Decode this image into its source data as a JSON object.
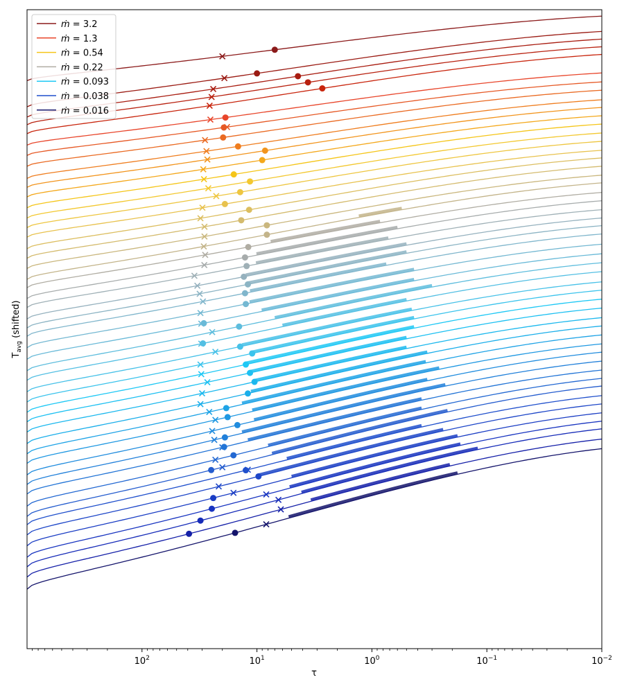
{
  "chart_data": {
    "type": "line",
    "title": "",
    "xlabel": "τ",
    "ylabel_main": "T",
    "ylabel_sub": "avg",
    "ylabel_suffix": " (shifted)",
    "xscale": "log",
    "x_reversed": true,
    "xlim": [
      1000,
      0.01
    ],
    "ylim": [
      0,
      100
    ],
    "x_ticks": [
      {
        "value": 100,
        "base": "10",
        "exp": "2"
      },
      {
        "value": 10,
        "base": "10",
        "exp": "1"
      },
      {
        "value": 1,
        "base": "10",
        "exp": "0"
      },
      {
        "value": 0.1,
        "base": "10",
        "exp": "−1"
      },
      {
        "value": 0.01,
        "base": "10",
        "exp": "−2"
      }
    ],
    "y_ticks": [],
    "legend_position": "upper-left",
    "legend": [
      {
        "label": "= 3.2",
        "color": "#8b1a1a"
      },
      {
        "label": "= 1.3",
        "color": "#e8452a"
      },
      {
        "label": "= 0.54",
        "color": "#f5c518"
      },
      {
        "label": "= 0.22",
        "color": "#b0ada3"
      },
      {
        "label": "= 0.093",
        "color": "#1ec8f5"
      },
      {
        "label": "= 0.038",
        "color": "#1f4fcc"
      },
      {
        "label": "= 0.016",
        "color": "#14146b"
      }
    ],
    "legend_symbol": "ṁ",
    "series": [
      {
        "name": "ṁ = 3.2",
        "color": "#8b1a1a",
        "y_left": 88.9,
        "y_right": 99.0,
        "x_mark": 20.0,
        "x_dot": 7.0,
        "ribbon": null
      },
      {
        "name": "",
        "color": "#9a1a12",
        "y_left": 84.8,
        "y_right": 96.6,
        "x_mark": 19.2,
        "x_dot": 10.0,
        "ribbon": null
      },
      {
        "name": "",
        "color": "#a81c10",
        "y_left": 83.2,
        "y_right": 95.4,
        "x_mark": 24.0,
        "x_dot": 4.4,
        "ribbon": null
      },
      {
        "name": "",
        "color": "#b8200e",
        "y_left": 82.0,
        "y_right": 94.2,
        "x_mark": 24.8,
        "x_dot": 3.6,
        "ribbon": null
      },
      {
        "name": "",
        "color": "#c8240c",
        "y_left": 80.6,
        "y_right": 93.0,
        "x_mark": 25.8,
        "x_dot": 2.7,
        "ribbon": null
      },
      {
        "name": "ṁ = 1.3",
        "color": "#e8452a",
        "y_left": 78.8,
        "y_right": 90.1,
        "x_mark": 25.4,
        "x_dot": 18.8,
        "ribbon": null
      },
      {
        "name": "",
        "color": "#e65824",
        "y_left": 77.2,
        "y_right": 88.7,
        "x_mark": 18.2,
        "x_dot": 19.4,
        "ribbon": null
      },
      {
        "name": "",
        "color": "#ea6a22",
        "y_left": 75.5,
        "y_right": 87.4,
        "x_mark": 28.3,
        "x_dot": 19.7,
        "ribbon": null
      },
      {
        "name": "",
        "color": "#ef7d1e",
        "y_left": 73.6,
        "y_right": 85.9,
        "x_mark": 27.5,
        "x_dot": 14.6,
        "ribbon": null
      },
      {
        "name": "",
        "color": "#f2941c",
        "y_left": 72.2,
        "y_right": 84.7,
        "x_mark": 27.0,
        "x_dot": 8.5,
        "ribbon": null
      },
      {
        "name": "",
        "color": "#f4a81b",
        "y_left": 70.7,
        "y_right": 83.4,
        "x_mark": 29.3,
        "x_dot": 9.0,
        "ribbon": null
      },
      {
        "name": "ṁ = 0.54",
        "color": "#f5c518",
        "y_left": 69.0,
        "y_right": 82.1,
        "x_mark": 28.9,
        "x_dot": 15.9,
        "ribbon": null
      },
      {
        "name": "",
        "color": "#f3c830",
        "y_left": 67.4,
        "y_right": 80.7,
        "x_mark": 26.5,
        "x_dot": 11.5,
        "ribbon": null
      },
      {
        "name": "",
        "color": "#eec640",
        "y_left": 65.9,
        "y_right": 79.4,
        "x_mark": 22.6,
        "x_dot": 14.0,
        "ribbon": null
      },
      {
        "name": "",
        "color": "#e8c24e",
        "y_left": 64.4,
        "y_right": 78.0,
        "x_mark": 29.8,
        "x_dot": 19.0,
        "ribbon": null
      },
      {
        "name": "",
        "color": "#dcbe60",
        "y_left": 62.6,
        "y_right": 76.8,
        "x_mark": 31.0,
        "x_dot": 11.7,
        "ribbon": null
      },
      {
        "name": "",
        "color": "#d4bb6e",
        "y_left": 61.1,
        "y_right": 75.5,
        "x_mark": 28.6,
        "x_dot": 13.7,
        "ribbon": null
      },
      {
        "name": "",
        "color": "#cab77e",
        "y_left": 59.5,
        "y_right": 74.1,
        "x_mark": 28.6,
        "x_dot": 8.2,
        "ribbon": null
      },
      {
        "name": "",
        "color": "#c3b48a",
        "y_left": 57.8,
        "y_right": 72.9,
        "x_mark": 29.0,
        "x_dot": 8.2,
        "ribbon": [
          1.3,
          0.55
        ]
      },
      {
        "name": "ṁ = 0.22",
        "color": "#b0ada3",
        "y_left": 56.5,
        "y_right": 71.4,
        "x_mark": 28.2,
        "x_dot": 11.9,
        "ribbon": [
          7.6,
          0.85
        ]
      },
      {
        "name": "",
        "color": "#a7acac",
        "y_left": 54.8,
        "y_right": 70.1,
        "x_mark": 28.7,
        "x_dot": 12.7,
        "ribbon": [
          10.1,
          0.6
        ]
      },
      {
        "name": "",
        "color": "#9fb0b6",
        "y_left": 53.4,
        "y_right": 68.7,
        "x_mark": 35.0,
        "x_dot": 12.3,
        "ribbon": [
          10.2,
          0.72
        ]
      },
      {
        "name": "",
        "color": "#95b1be",
        "y_left": 51.6,
        "y_right": 67.4,
        "x_mark": 33.0,
        "x_dot": 13.0,
        "ribbon": [
          12.5,
          0.5
        ]
      },
      {
        "name": "",
        "color": "#8cb4c4",
        "y_left": 50.2,
        "y_right": 66.2,
        "x_mark": 31.5,
        "x_dot": 12.0,
        "ribbon": [
          12.2,
          0.5
        ]
      },
      {
        "name": "",
        "color": "#80b6cc",
        "y_left": 48.9,
        "y_right": 64.9,
        "x_mark": 29.5,
        "x_dot": 12.7,
        "ribbon": [
          11.5,
          0.75
        ]
      },
      {
        "name": "",
        "color": "#74b8d2",
        "y_left": 47.1,
        "y_right": 63.3,
        "x_mark": 31.0,
        "x_dot": 12.5,
        "ribbon": [
          11.6,
          0.43
        ]
      },
      {
        "name": "",
        "color": "#6abad8",
        "y_left": 45.3,
        "y_right": 61.8,
        "x_mark": 30.5,
        "x_dot": 29.0,
        "ribbon": [
          9.1,
          0.43
        ]
      },
      {
        "name": "",
        "color": "#5ebddd",
        "y_left": 43.5,
        "y_right": 60.4,
        "x_mark": 24.5,
        "x_dot": 14.3,
        "ribbon": [
          7.0,
          0.3
        ]
      },
      {
        "name": "",
        "color": "#53bfe3",
        "y_left": 42.0,
        "y_right": 59.0,
        "x_mark": 30.5,
        "x_dot": 29.5,
        "ribbon": [
          6.0,
          0.5
        ]
      },
      {
        "name": "",
        "color": "#47c1e8",
        "y_left": 40.2,
        "y_right": 57.4,
        "x_mark": 23.0,
        "x_dot": 14.0,
        "ribbon": [
          13.5,
          0.45
        ]
      },
      {
        "name": "",
        "color": "#3ac3ec",
        "y_left": 38.6,
        "y_right": 56.1,
        "x_mark": 31.0,
        "x_dot": 11.0,
        "ribbon": [
          11.5,
          0.43
        ]
      },
      {
        "name": "ṁ = 0.093",
        "color": "#1ec8f5",
        "y_left": 37.0,
        "y_right": 54.7,
        "x_mark": 30.5,
        "x_dot": 12.5,
        "ribbon": [
          12.7,
          0.43
        ]
      },
      {
        "name": "",
        "color": "#1cc0f2",
        "y_left": 35.5,
        "y_right": 53.3,
        "x_mark": 27.0,
        "x_dot": 11.5,
        "ribbon": [
          11.5,
          0.5
        ]
      },
      {
        "name": "",
        "color": "#1bb8ee",
        "y_left": 33.9,
        "y_right": 51.8,
        "x_mark": 30.0,
        "x_dot": 10.5,
        "ribbon": [
          10.4,
          0.5
        ]
      },
      {
        "name": "",
        "color": "#1aaeea",
        "y_left": 32.1,
        "y_right": 50.5,
        "x_mark": 31.0,
        "x_dot": 12.0,
        "ribbon": [
          11.3,
          0.33
        ]
      },
      {
        "name": "",
        "color": "#1ea3e6",
        "y_left": 30.5,
        "y_right": 49.1,
        "x_mark": 26.0,
        "x_dot": 18.5,
        "ribbon": [
          13.5,
          0.34
        ]
      },
      {
        "name": "",
        "color": "#1f98e2",
        "y_left": 29.0,
        "y_right": 47.7,
        "x_mark": 23.0,
        "x_dot": 18.0,
        "ribbon": [
          11.0,
          0.26
        ]
      },
      {
        "name": "",
        "color": "#208cde",
        "y_left": 27.2,
        "y_right": 46.4,
        "x_mark": 24.5,
        "x_dot": 14.8,
        "ribbon": [
          10.6,
          0.33
        ]
      },
      {
        "name": "",
        "color": "#2180da",
        "y_left": 25.7,
        "y_right": 45.0,
        "x_mark": 23.5,
        "x_dot": 19.0,
        "ribbon": [
          13.5,
          0.23
        ]
      },
      {
        "name": "",
        "color": "#2274d6",
        "y_left": 24.2,
        "y_right": 43.6,
        "x_mark": 20.0,
        "x_dot": 19.3,
        "ribbon": [
          12.0,
          0.37
        ]
      },
      {
        "name": "",
        "color": "#2368d2",
        "y_left": 22.3,
        "y_right": 42.3,
        "x_mark": 23.0,
        "x_dot": 16.0,
        "ribbon": [
          8.0,
          0.37
        ]
      },
      {
        "name": "",
        "color": "#245cce",
        "y_left": 20.7,
        "y_right": 41.1,
        "x_mark": 20.0,
        "x_dot": 25.0,
        "ribbon": [
          7.4,
          0.22
        ]
      },
      {
        "name": "ṁ = 0.038",
        "color": "#1f4fcc",
        "y_left": 19.4,
        "y_right": 39.6,
        "x_mark": 12.0,
        "x_dot": 12.5,
        "ribbon": [
          5.5,
          0.37
        ]
      },
      {
        "name": "",
        "color": "#1d46c8",
        "y_left": 17.8,
        "y_right": 38.3,
        "x_mark": 21.5,
        "x_dot": 9.7,
        "ribbon": [
          9.7,
          0.24
        ]
      },
      {
        "name": "",
        "color": "#1a3dc4",
        "y_left": 16.1,
        "y_right": 36.9,
        "x_mark": 16.0,
        "x_dot": 24.0,
        "ribbon": [
          5.0,
          0.18
        ]
      },
      {
        "name": "",
        "color": "#1834c0",
        "y_left": 14.3,
        "y_right": 35.6,
        "x_mark": 8.3,
        "x_dot": 24.7,
        "ribbon": [
          5.2,
          0.17
        ]
      },
      {
        "name": "",
        "color": "#162bb8",
        "y_left": 12.8,
        "y_right": 34.4,
        "x_mark": 6.5,
        "x_dot": 31.0,
        "ribbon": [
          4.1,
          0.12
        ]
      },
      {
        "name": "",
        "color": "#1520a8",
        "y_left": 11.2,
        "y_right": 32.8,
        "x_mark": 6.2,
        "x_dot": 39.0,
        "ribbon": [
          3.4,
          0.21
        ]
      },
      {
        "name": "ṁ = 0.016",
        "color": "#14146b",
        "y_left": 9.3,
        "y_right": 31.3,
        "x_mark": 8.3,
        "x_dot": 15.5,
        "ribbon": [
          5.3,
          0.18
        ]
      }
    ]
  }
}
